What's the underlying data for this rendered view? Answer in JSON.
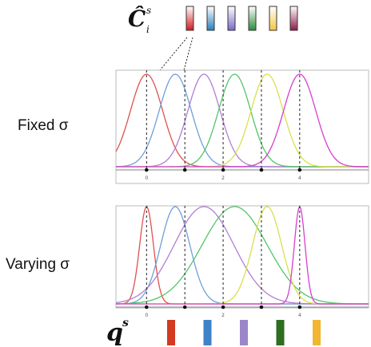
{
  "top_legend": {
    "symbol": "Ĉ",
    "superscript": "s",
    "subscript": "i",
    "swatches": [
      {
        "top": "#ffffff",
        "bottom": "#d7191c"
      },
      {
        "top": "#ffffff",
        "bottom": "#2c7fb8"
      },
      {
        "top": "#ffffff",
        "bottom": "#7b68c8"
      },
      {
        "top": "#ffffff",
        "bottom": "#2e8b3a"
      },
      {
        "top": "#ffffff",
        "bottom": "#f5c542"
      },
      {
        "top": "#ffffff",
        "bottom": "#8b1a4a"
      }
    ]
  },
  "bottom_legend": {
    "symbol": "q",
    "superscript": "s",
    "swatches": [
      "#d23b22",
      "#3f82c8",
      "#9c86c8",
      "#2e6e1f",
      "#f2b632"
    ]
  },
  "rows": [
    {
      "label": "Fixed σ",
      "sigmas": [
        0.42,
        0.42,
        0.42,
        0.42,
        0.42,
        0.42
      ]
    },
    {
      "label": "Varying σ",
      "sigmas": [
        0.18,
        0.38,
        0.78,
        0.85,
        0.38,
        0.14
      ]
    }
  ],
  "curve_colors": [
    "#e0514e",
    "#6f9fd8",
    "#b27ed4",
    "#52c569",
    "#d8e04c",
    "#d63fd0"
  ],
  "centers": [
    0,
    0.75,
    1.5,
    2.3,
    3.15,
    4.0
  ],
  "x_range": [
    -0.8,
    5.8
  ],
  "tick_labels": [
    "0",
    "2",
    "4"
  ],
  "tick_values": [
    0,
    2,
    4
  ],
  "dashed_x": [
    0,
    1,
    2,
    3,
    4
  ]
}
